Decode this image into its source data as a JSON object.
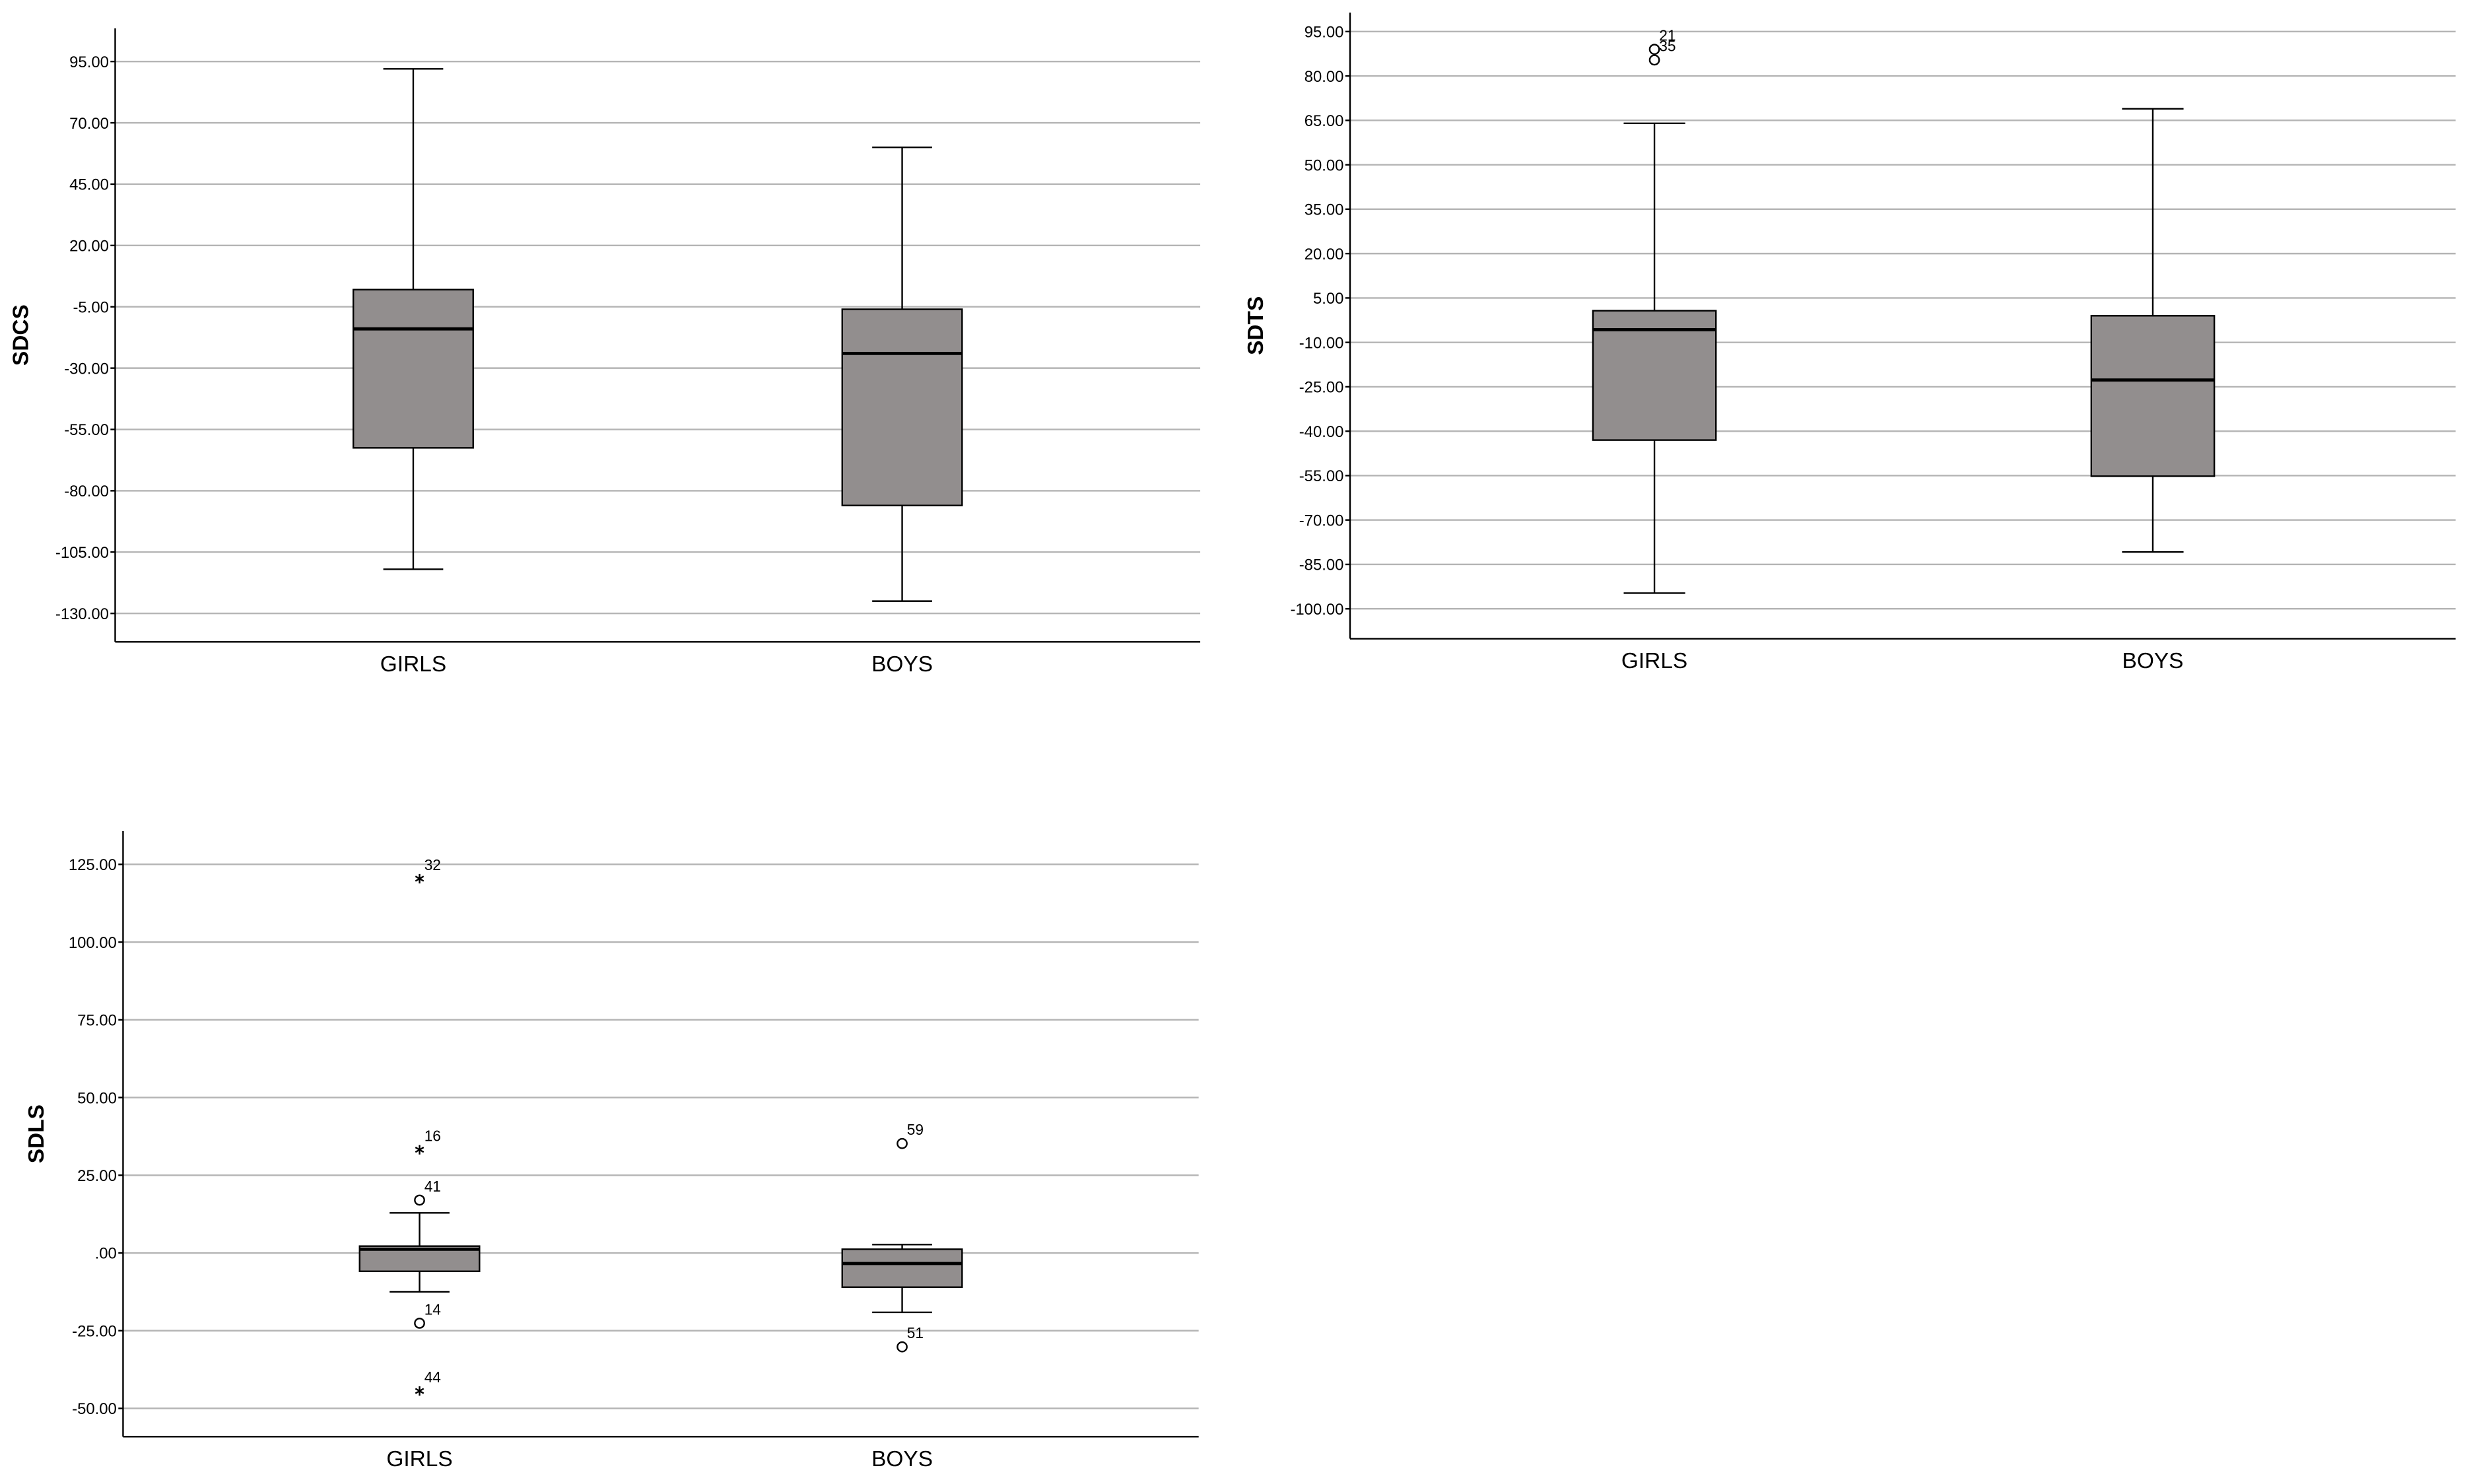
{
  "chart_data": [
    {
      "type": "box",
      "ylabel": "SDCS",
      "categories": [
        "GIRLS",
        "BOYS"
      ],
      "boxes": [
        {
          "min": -112,
          "q1": -62.5,
          "median": -14,
          "q3": 2,
          "max": 92,
          "outliers": []
        },
        {
          "min": -125,
          "q1": -86,
          "median": -24,
          "q3": -6,
          "max": 60,
          "outliers": []
        }
      ],
      "box_color": "#928e8e",
      "grid": true,
      "ylim": [
        -141.6,
        108.5
      ],
      "yticks": [
        {
          "value": 95,
          "label": "95.00"
        },
        {
          "value": 70,
          "label": "70.00"
        },
        {
          "value": 45,
          "label": "45.00"
        },
        {
          "value": 20,
          "label": "20.00"
        },
        {
          "value": -5,
          "label": "-5.00"
        },
        {
          "value": -30,
          "label": "-30.00"
        },
        {
          "value": -55,
          "label": "-55.00"
        },
        {
          "value": -80,
          "label": "-80.00"
        },
        {
          "value": -105,
          "label": "-105.00"
        },
        {
          "value": -130,
          "label": "-130.00"
        }
      ]
    },
    {
      "type": "box",
      "ylabel": "SDTS",
      "categories": [
        "GIRLS",
        "BOYS"
      ],
      "boxes": [
        {
          "min": -94.7,
          "q1": -43,
          "median": -5.7,
          "q3": 0.7,
          "max": 64,
          "outliers": [
            {
              "value": 89,
              "label": "21",
              "symbol": "circle"
            },
            {
              "value": 85.4,
              "label": "35",
              "symbol": "circle"
            }
          ]
        },
        {
          "min": -80.8,
          "q1": -55.2,
          "median": -22.7,
          "q3": -1,
          "max": 68.9,
          "outliers": []
        }
      ],
      "box_color": "#928e8e",
      "grid": true,
      "ylim": [
        -110.1,
        101.4
      ],
      "yticks": [
        {
          "value": 95,
          "label": "95.00"
        },
        {
          "value": 80,
          "label": "80.00"
        },
        {
          "value": 65,
          "label": "65.00"
        },
        {
          "value": 50,
          "label": "50.00"
        },
        {
          "value": 35,
          "label": "35.00"
        },
        {
          "value": 20,
          "label": "20.00"
        },
        {
          "value": 5,
          "label": "5.00"
        },
        {
          "value": -10,
          "label": "-10.00"
        },
        {
          "value": -25,
          "label": "-25.00"
        },
        {
          "value": -40,
          "label": "-40.00"
        },
        {
          "value": -55,
          "label": "-55.00"
        },
        {
          "value": -70,
          "label": "-70.00"
        },
        {
          "value": -85,
          "label": "-85.00"
        },
        {
          "value": -100,
          "label": "-100.00"
        }
      ]
    },
    {
      "type": "box",
      "ylabel": "SDLS",
      "categories": [
        "GIRLS",
        "BOYS"
      ],
      "boxes": [
        {
          "min": -12.5,
          "q1": -5.9,
          "median": 1.2,
          "q3": 2.2,
          "max": 12.9,
          "outliers": [
            {
              "value": 120.4,
              "label": "32",
              "symbol": "star"
            },
            {
              "value": 33.2,
              "label": "16",
              "symbol": "star"
            },
            {
              "value": 17,
              "label": "41",
              "symbol": "circle"
            },
            {
              "value": -22.6,
              "label": "14",
              "symbol": "circle"
            },
            {
              "value": -44.4,
              "label": "44",
              "symbol": "star"
            }
          ]
        },
        {
          "min": -19.1,
          "q1": -11,
          "median": -3.4,
          "q3": 1.2,
          "max": 2.7,
          "outliers": [
            {
              "value": 35.2,
              "label": "59",
              "symbol": "circle"
            },
            {
              "value": -30.2,
              "label": "51",
              "symbol": "circle"
            }
          ]
        }
      ],
      "box_color": "#928e8e",
      "grid": true,
      "ylim": [
        -59.1,
        135.7
      ],
      "yticks": [
        {
          "value": 125,
          "label": "125.00"
        },
        {
          "value": 100,
          "label": "100.00"
        },
        {
          "value": 75,
          "label": "75.00"
        },
        {
          "value": 50,
          "label": "50.00"
        },
        {
          "value": 25,
          "label": "25.00"
        },
        {
          "value": 0,
          "label": ".00"
        },
        {
          "value": -25,
          "label": "-25.00"
        },
        {
          "value": -50,
          "label": "-50.00"
        }
      ]
    }
  ]
}
